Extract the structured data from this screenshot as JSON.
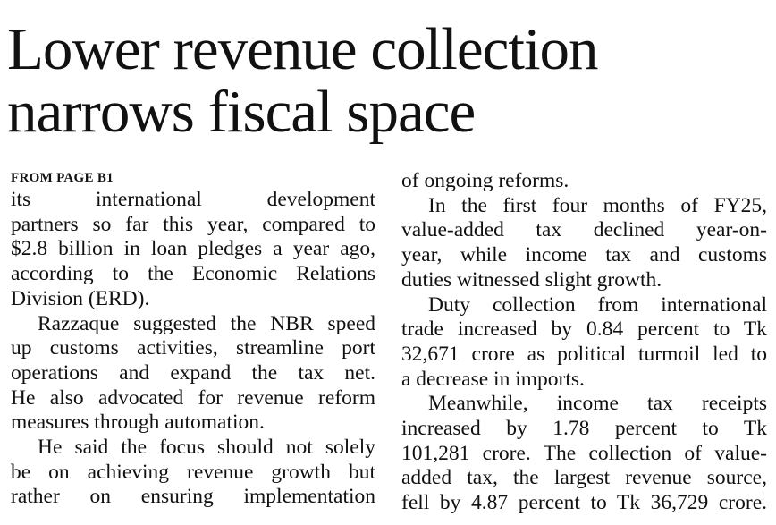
{
  "article": {
    "headline": [
      "Lower revenue collection",
      "narrows fiscal space"
    ],
    "kicker": "FROM PAGE B1",
    "left_column": [
      {
        "text": "its international development",
        "indent": false,
        "last": false
      },
      {
        "text": "partners so far this year, compared to",
        "indent": false,
        "last": false
      },
      {
        "text": "$2.8 billion in loan pledges a year ago,",
        "indent": false,
        "last": false
      },
      {
        "text": "according to the Economic Relations",
        "indent": false,
        "last": false
      },
      {
        "text": "Division (ERD).",
        "indent": false,
        "last": true
      },
      {
        "text": "Razzaque suggested the NBR speed",
        "indent": true,
        "last": false
      },
      {
        "text": "up customs activities, streamline port",
        "indent": false,
        "last": false
      },
      {
        "text": "operations and expand the tax net.",
        "indent": false,
        "last": false
      },
      {
        "text": "He also advocated for revenue reform",
        "indent": false,
        "last": false
      },
      {
        "text": "measures through automation.",
        "indent": false,
        "last": true
      },
      {
        "text": "He said the focus should not solely",
        "indent": true,
        "last": false
      },
      {
        "text": "be on achieving revenue growth but",
        "indent": false,
        "last": false
      },
      {
        "text": "rather on ensuring implementation",
        "indent": false,
        "last": false
      }
    ],
    "right_column": [
      {
        "text": "of ongoing reforms.",
        "indent": false,
        "last": true
      },
      {
        "text": "In the first four months of FY25,",
        "indent": true,
        "last": false
      },
      {
        "text": "value-added tax declined year-on-",
        "indent": false,
        "last": false
      },
      {
        "text": "year, while income tax and customs",
        "indent": false,
        "last": false
      },
      {
        "text": "duties witnessed slight growth.",
        "indent": false,
        "last": true
      },
      {
        "text": "Duty collection from international",
        "indent": true,
        "last": false
      },
      {
        "text": "trade increased by 0.84 percent to Tk",
        "indent": false,
        "last": false
      },
      {
        "text": "32,671 crore as political turmoil led to",
        "indent": false,
        "last": false
      },
      {
        "text": "a decrease in imports.",
        "indent": false,
        "last": true
      },
      {
        "text": "Meanwhile, income tax receipts",
        "indent": true,
        "last": false
      },
      {
        "text": "increased by 1.78 percent to Tk",
        "indent": false,
        "last": false
      },
      {
        "text": "101,281 crore. The collection of value-",
        "indent": false,
        "last": false
      },
      {
        "text": "added tax, the largest revenue source,",
        "indent": false,
        "last": false
      },
      {
        "text": "fell by 4.87 percent to Tk 36,729 crore.",
        "indent": false,
        "last": false
      }
    ]
  }
}
